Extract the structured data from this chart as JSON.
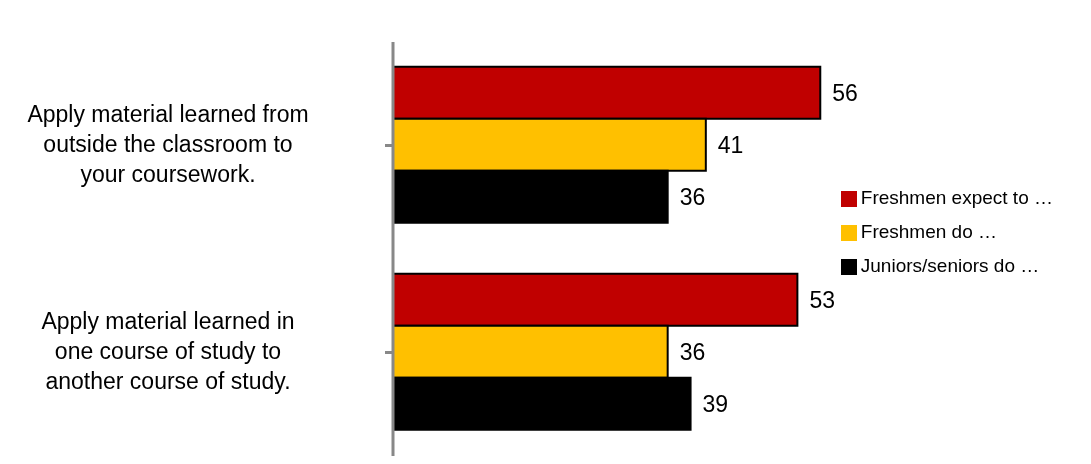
{
  "chart_data": {
    "type": "bar",
    "orientation": "horizontal",
    "categories": [
      "Apply material learned from outside the classroom to your coursework.",
      "Apply material learned in one course of study to another course of study."
    ],
    "series": [
      {
        "name": "Freshmen expect to …",
        "color": "#c00000",
        "values": [
          56,
          53
        ]
      },
      {
        "name": "Freshmen do …",
        "color": "#ffc000",
        "values": [
          41,
          36
        ]
      },
      {
        "name": "Juniors/seniors do …",
        "color": "#000000",
        "values": [
          36,
          39
        ]
      }
    ],
    "data_labels": true,
    "legend": "right",
    "grid": false
  }
}
